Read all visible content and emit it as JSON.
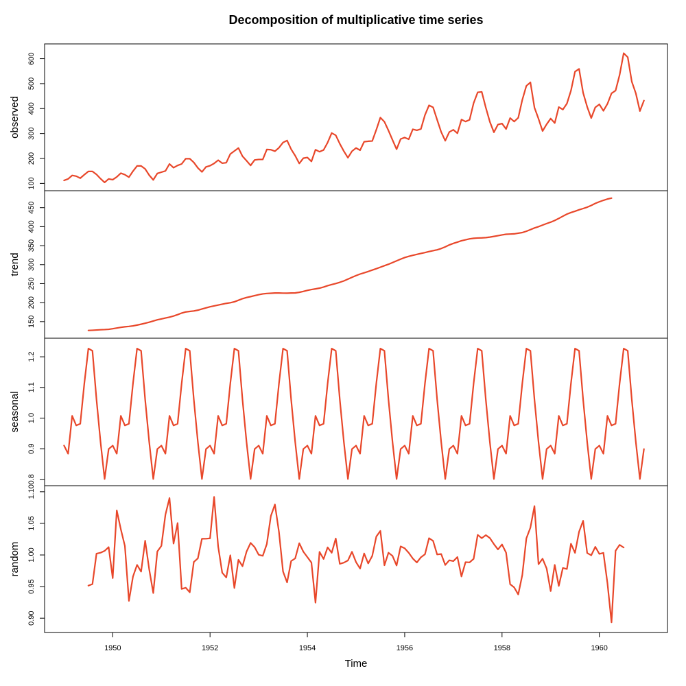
{
  "chart_data": {
    "type": "line",
    "title": "Decomposition of multiplicative time series",
    "xlabel": "Time",
    "x_start": 1949.0,
    "x_step": 0.0833333,
    "xlim": [
      1948.6,
      1961.4
    ],
    "x_ticks": [
      "1950",
      "1952",
      "1954",
      "1956",
      "1958",
      "1960"
    ],
    "line_color": "#e8472a",
    "panels": [
      {
        "name": "observed",
        "ylabel": "observed",
        "ylim": [
          90,
          640
        ],
        "y_ticks": [
          "100",
          "200",
          "300",
          "400",
          "500",
          "600"
        ],
        "values": [
          112,
          118,
          132,
          129,
          121,
          135,
          148,
          148,
          136,
          119,
          104,
          118,
          115,
          126,
          141,
          135,
          125,
          149,
          170,
          170,
          158,
          133,
          114,
          140,
          145,
          150,
          178,
          163,
          172,
          178,
          199,
          199,
          184,
          162,
          146,
          166,
          171,
          180,
          193,
          181,
          183,
          218,
          230,
          242,
          209,
          191,
          172,
          194,
          196,
          196,
          236,
          235,
          229,
          243,
          264,
          272,
          237,
          211,
          180,
          201,
          204,
          188,
          235,
          227,
          234,
          264,
          302,
          293,
          259,
          229,
          203,
          229,
          242,
          233,
          267,
          269,
          270,
          315,
          364,
          347,
          312,
          274,
          237,
          278,
          284,
          277,
          317,
          313,
          318,
          374,
          413,
          405,
          355,
          306,
          271,
          306,
          315,
          301,
          356,
          348,
          355,
          422,
          465,
          467,
          404,
          347,
          305,
          336,
          340,
          318,
          362,
          348,
          363,
          435,
          491,
          505,
          404,
          359,
          310,
          337,
          360,
          342,
          406,
          396,
          420,
          472,
          548,
          559,
          463,
          407,
          362,
          405,
          417,
          391,
          419,
          461,
          472,
          535,
          622,
          606,
          508,
          461,
          390,
          432
        ]
      },
      {
        "name": "trend",
        "ylabel": "trend",
        "ylim": [
          119,
          482
        ],
        "y_ticks": [
          "150",
          "200",
          "250",
          "300",
          "350",
          "400",
          "450"
        ],
        "values": [
          null,
          null,
          null,
          null,
          null,
          null,
          126.79,
          127.25,
          127.96,
          128.58,
          129.0,
          129.75,
          131.25,
          133.08,
          134.92,
          136.42,
          137.42,
          138.75,
          140.92,
          143.17,
          145.71,
          148.42,
          151.54,
          154.71,
          157.13,
          159.54,
          161.83,
          164.75,
          168.29,
          172.46,
          175.46,
          176.83,
          178.04,
          180.17,
          183.13,
          186.21,
          189.04,
          191.29,
          193.58,
          195.83,
          198.04,
          199.75,
          202.21,
          206.25,
          210.42,
          213.38,
          215.83,
          218.5,
          220.92,
          222.92,
          224.08,
          224.71,
          225.33,
          225.33,
          224.96,
          224.92,
          225.29,
          225.54,
          227.13,
          229.42,
          232.25,
          234.42,
          236.17,
          238.17,
          241.0,
          244.67,
          247.46,
          250.25,
          253.5,
          257.13,
          261.83,
          266.67,
          271.13,
          275.21,
          278.5,
          281.96,
          285.75,
          289.33,
          293.25,
          297.17,
          301.0,
          305.46,
          309.96,
          314.42,
          318.63,
          321.75,
          324.5,
          327.08,
          329.54,
          331.83,
          334.46,
          336.75,
          339.08,
          342.42,
          346.83,
          351.88,
          355.88,
          359.33,
          362.92,
          365.33,
          367.88,
          369.33,
          370.17,
          370.42,
          371.17,
          372.5,
          374.29,
          376.29,
          378.33,
          380.0,
          380.5,
          381.04,
          382.83,
          384.46,
          387.88,
          392.21,
          396.54,
          400.0,
          404.17,
          408.17,
          411.88,
          416.33,
          421.67,
          427.5,
          433.0,
          437.17,
          440.58,
          444.42,
          447.67,
          451.25,
          455.88,
          461.17,
          465.5,
          469.33,
          472.75,
          475.04,
          null,
          null,
          null,
          null,
          null,
          null
        ]
      },
      {
        "name": "seasonal",
        "ylabel": "seasonal",
        "ylim": [
          0.795,
          1.245
        ],
        "y_ticks": [
          "0.8",
          "0.9",
          "1.0",
          "1.1",
          "1.2"
        ],
        "pattern": [
          0.9102,
          0.8836,
          1.0073,
          0.9759,
          0.9813,
          1.1131,
          1.2269,
          1.2195,
          1.0605,
          0.9216,
          0.8011,
          0.899
        ]
      },
      {
        "name": "random",
        "ylabel": "random",
        "ylim": [
          0.885,
          1.102
        ],
        "y_ticks": [
          "0.90",
          "0.95",
          "1.00",
          "1.05",
          "1.10"
        ],
        "values": [
          null,
          null,
          null,
          null,
          null,
          null,
          0.9515,
          0.9539,
          1.0021,
          1.0036,
          1.0065,
          1.0124,
          0.9634,
          1.0705,
          1.0407,
          1.0143,
          0.9274,
          0.9659,
          0.9843,
          0.9737,
          1.0225,
          0.9771,
          0.9398,
          1.0055,
          1.0144,
          1.0637,
          1.0901,
          1.018,
          1.0505,
          0.9462,
          0.9482,
          0.941,
          0.989,
          0.9947,
          1.0256,
          1.0257,
          1.0263,
          1.0919,
          1.0135,
          0.972,
          0.9644,
          0.9995,
          0.9478,
          0.9924,
          0.9822,
          1.0053,
          1.0191,
          1.0123,
          1.0003,
          0.9987,
          1.0174,
          1.0617,
          1.0799,
          1.0362,
          0.9738,
          0.9566,
          0.9904,
          0.9946,
          1.0186,
          1.0053,
          0.9966,
          0.988,
          0.9246,
          1.0049,
          0.9937,
          1.0121,
          1.0035,
          1.0261,
          0.986,
          0.9879,
          0.9913,
          1.005,
          0.9887,
          0.9785,
          1.0024,
          0.9866,
          0.9986,
          1.0291,
          1.0381,
          0.9837,
          1.0036,
          0.9985,
          0.9834,
          1.0136,
          1.0106,
          1.0034,
          0.9944,
          0.9881,
          0.9964,
          1.0011,
          1.0266,
          1.0223,
          1.0008,
          1.0015,
          0.9842,
          0.9916,
          0.9903,
          0.9967,
          0.966,
          0.9887,
          0.9883,
          0.9939,
          1.0318,
          1.0266,
          1.0314,
          1.0268,
          1.0172,
          1.0088,
          1.0166,
          1.0037,
          0.9538,
          0.9487,
          0.9376,
          0.9683,
          1.0262,
          1.0433,
          1.0773,
          0.9854,
          0.9941,
          0.9786,
          0.9429,
          0.9843,
          0.951,
          0.9794,
          0.9778,
          1.0178,
          1.0033,
          1.0368,
          1.0541,
          1.0031,
          0.9995,
          1.0129,
          1.0017,
          1.0034,
          0.9553,
          0.8935,
          1.0066,
          1.016,
          1.0118,
          null,
          null,
          null,
          null,
          null,
          null
        ]
      }
    ]
  }
}
